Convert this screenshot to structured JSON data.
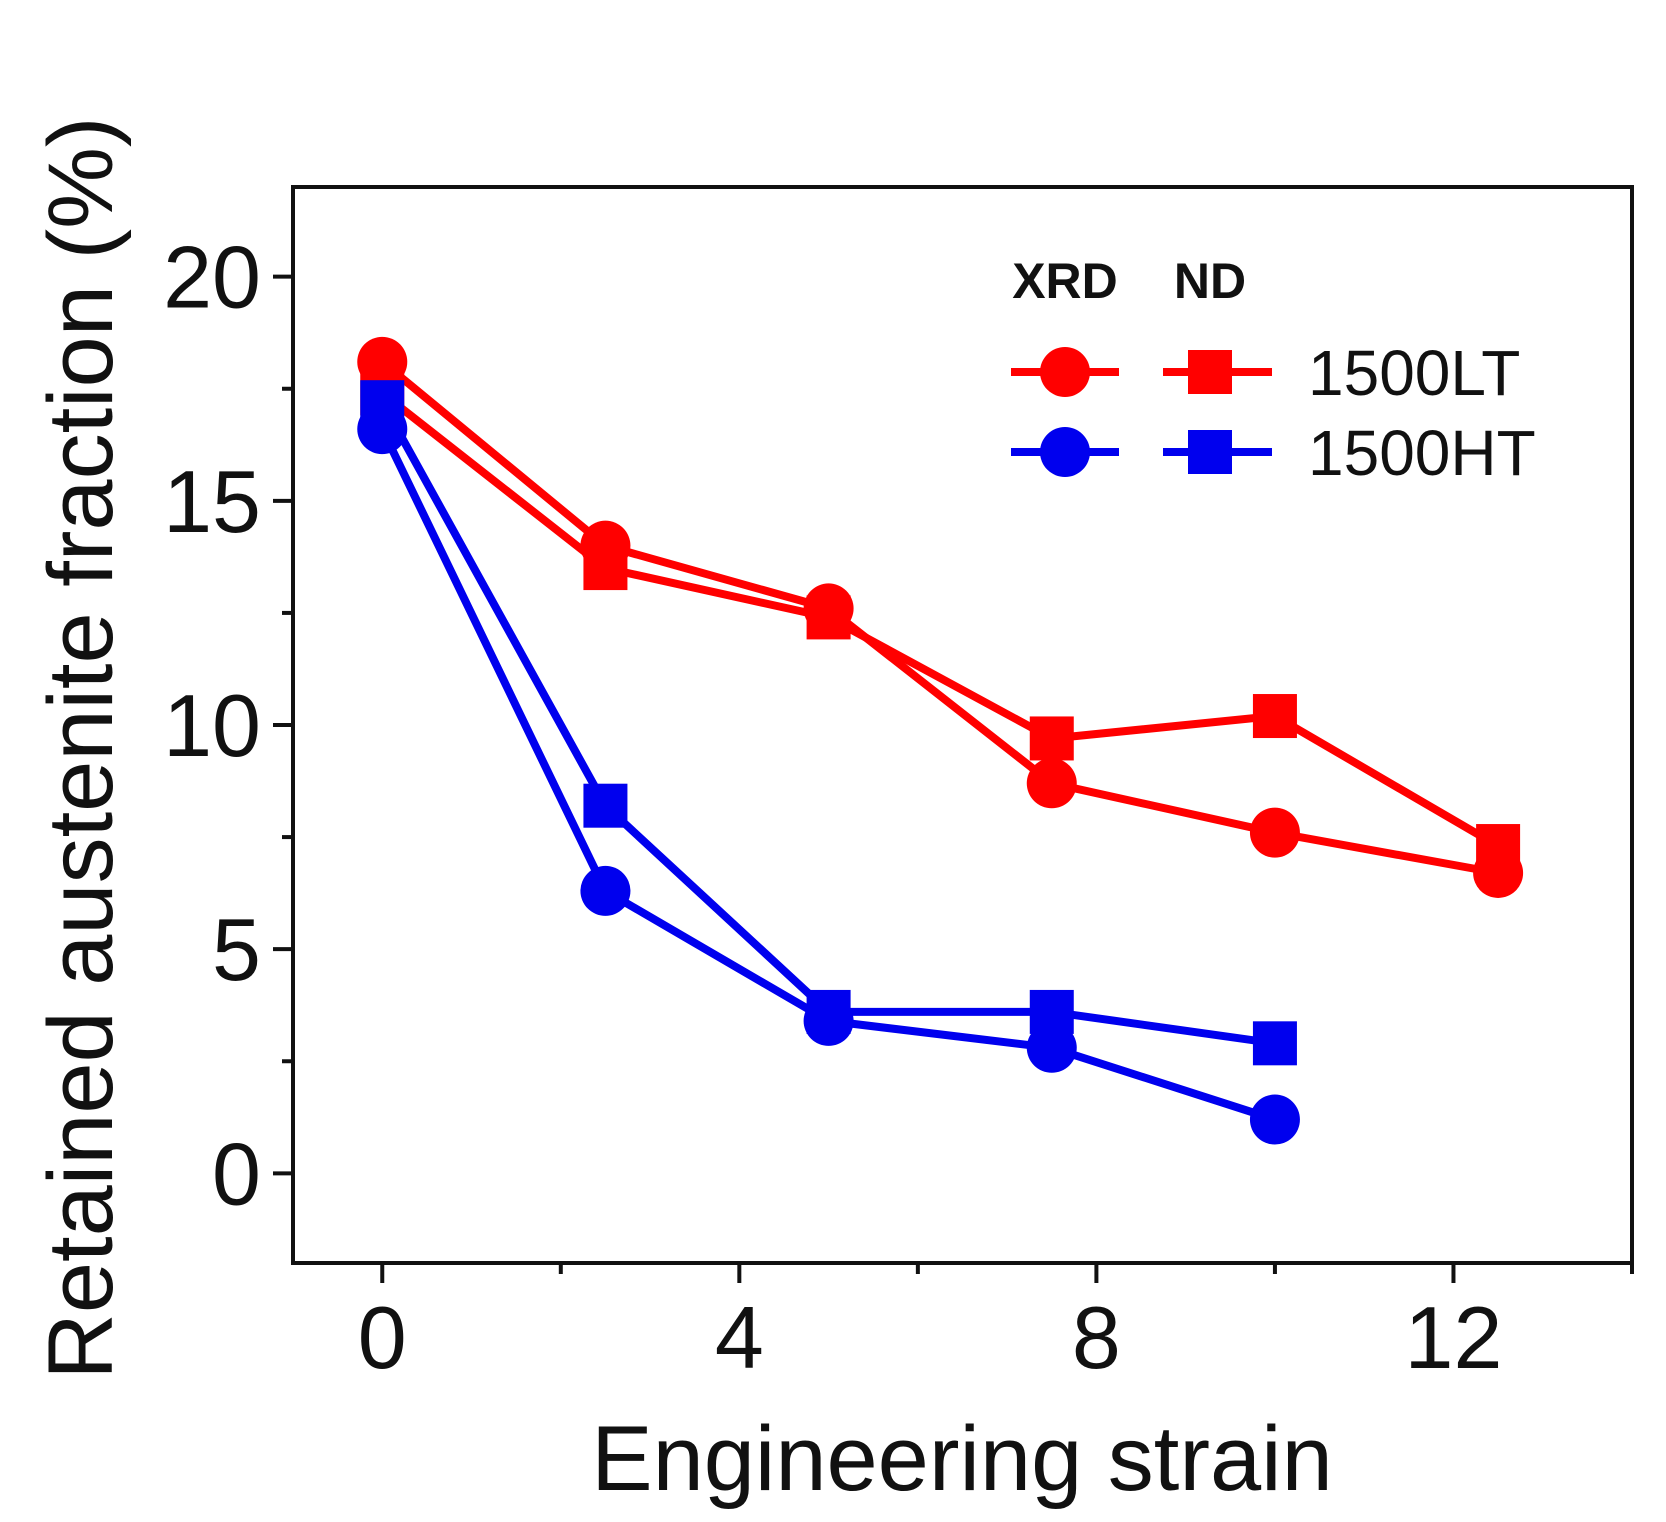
{
  "chart_data": {
    "type": "line",
    "xlabel": "Engineering strain",
    "ylabel": "Retained austenite fraction (%)",
    "xlim": [
      -1,
      14
    ],
    "ylim": [
      -2,
      22
    ],
    "xticks": [
      0,
      4,
      8,
      12
    ],
    "xticks_minor": [
      2,
      6,
      10,
      14
    ],
    "yticks": [
      0,
      5,
      10,
      15,
      20
    ],
    "yticks_minor": [
      2.5,
      7.5,
      12.5,
      17.5
    ],
    "grid": false,
    "legend": {
      "placement": "top-right",
      "method_headers": [
        "XRD",
        "ND"
      ],
      "entries": [
        "1500LT",
        "1500HT"
      ]
    },
    "series": [
      {
        "name": "1500LT XRD",
        "sample": "1500LT",
        "method": "XRD",
        "color": "#ff0000",
        "marker": "circle",
        "x": [
          0,
          2.5,
          5,
          7.5,
          10,
          12.5
        ],
        "y": [
          18.1,
          14.0,
          12.6,
          8.7,
          7.6,
          6.7
        ]
      },
      {
        "name": "1500LT ND",
        "sample": "1500LT",
        "method": "ND",
        "color": "#ff0000",
        "marker": "square",
        "x": [
          0,
          2.5,
          5,
          7.5,
          10,
          12.5
        ],
        "y": [
          17.4,
          13.5,
          12.4,
          9.7,
          10.2,
          7.3
        ]
      },
      {
        "name": "1500HT XRD",
        "sample": "1500HT",
        "method": "XRD",
        "color": "#0000ee",
        "marker": "circle",
        "x": [
          0,
          2.5,
          5,
          7.5,
          10
        ],
        "y": [
          16.6,
          6.3,
          3.4,
          2.8,
          1.2
        ]
      },
      {
        "name": "1500HT ND",
        "sample": "1500HT",
        "method": "ND",
        "color": "#0000ee",
        "marker": "square",
        "x": [
          0,
          2.5,
          5,
          7.5,
          10
        ],
        "y": [
          17.2,
          8.2,
          3.6,
          3.6,
          2.9
        ]
      }
    ]
  }
}
